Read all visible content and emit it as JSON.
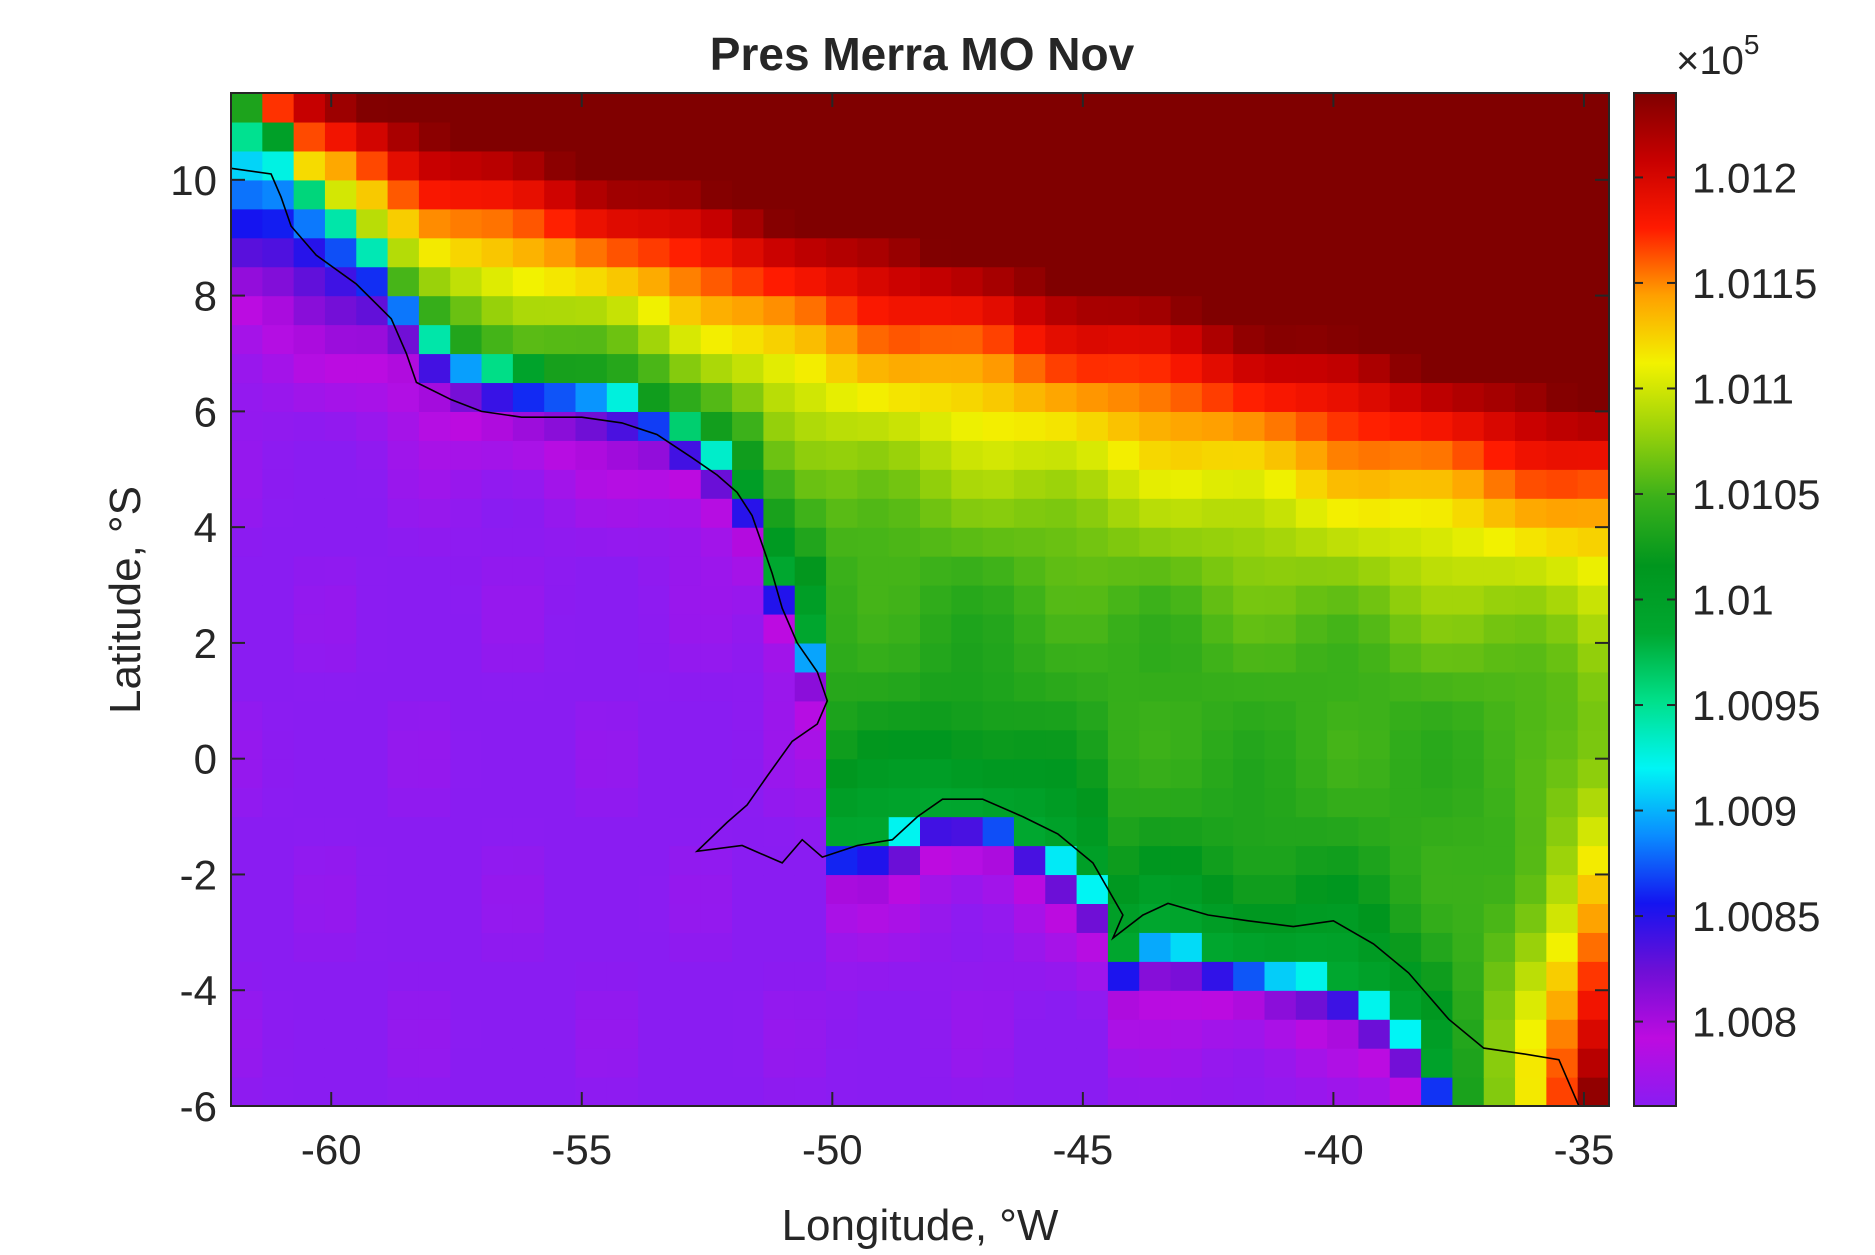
{
  "chart_data": {
    "type": "heatmap",
    "title": "Pres Merra MO Nov",
    "xlabel": "Longitude, °W",
    "ylabel": "Latitude, °S",
    "xlim": [
      -62,
      -34.5
    ],
    "ylim": [
      -6,
      11.5
    ],
    "x_ticks": [
      -60,
      -55,
      -50,
      -45,
      -40,
      -35
    ],
    "x_tick_labels": [
      "-60",
      "-55",
      "-50",
      "-45",
      "-40",
      "-35"
    ],
    "y_ticks": [
      -6,
      -4,
      -2,
      0,
      2,
      4,
      6,
      8,
      10
    ],
    "y_tick_labels": [
      "-6",
      "-4",
      "-2",
      "0",
      "2",
      "4",
      "6",
      "8",
      "10"
    ],
    "grid": false,
    "colorbar": {
      "multiplier_base": "×10",
      "multiplier_exponent": "5",
      "range": [
        1.0076,
        1.0124
      ],
      "ticks": [
        1.008,
        1.0085,
        1.009,
        1.0095,
        1.01,
        1.0105,
        1.011,
        1.0115,
        1.012
      ],
      "tick_labels": [
        "1.008",
        "1.0085",
        "1.009",
        "1.0095",
        "1.01",
        "1.0105",
        "1.011",
        "1.0115",
        "1.012"
      ],
      "colors": [
        "#8a1cf2",
        "#bd0be0",
        "#6e0fd6",
        "#1414f0",
        "#0a8cff",
        "#00f5f5",
        "#00e08a",
        "#00a830",
        "#00961e",
        "#3ab01a",
        "#9ad20a",
        "#f2f200",
        "#ffa000",
        "#ff1a00",
        "#c80000",
        "#800000"
      ]
    },
    "grid_spec": {
      "lon_min": -62,
      "lon_max": -34.5,
      "lat_min": -6,
      "lat_max": 11.5,
      "lon_step": 0.625,
      "lat_step": 0.5
    },
    "field_model": "Pressure field scaled by 1e5; low over the western ocean south-west of the coast (~1.0078-1.0085), steep rise across the coastline (~1.0095-1.01), trough of ~1.0104 parallel to the coast inland, rising toward the north-east corner to ~1.0124.",
    "coastline_points": [
      [
        -62,
        10.2
      ],
      [
        -61.2,
        10.1
      ],
      [
        -61,
        9.7
      ],
      [
        -60.8,
        9.2
      ],
      [
        -60.3,
        8.7
      ],
      [
        -59.5,
        8.2
      ],
      [
        -58.8,
        7.6
      ],
      [
        -58.5,
        7
      ],
      [
        -58.3,
        6.5
      ],
      [
        -57.6,
        6.2
      ],
      [
        -57,
        6
      ],
      [
        -56.2,
        5.9
      ],
      [
        -55.5,
        5.9
      ],
      [
        -55,
        5.9
      ],
      [
        -54.2,
        5.8
      ],
      [
        -53.5,
        5.6
      ],
      [
        -52.8,
        5.2
      ],
      [
        -52.3,
        4.9
      ],
      [
        -51.9,
        4.6
      ],
      [
        -51.6,
        4.2
      ],
      [
        -51.4,
        3.7
      ],
      [
        -51.2,
        3.2
      ],
      [
        -51,
        2.6
      ],
      [
        -50.7,
        2
      ],
      [
        -50.3,
        1.5
      ],
      [
        -50.1,
        1
      ],
      [
        -50.3,
        0.6
      ],
      [
        -50.8,
        0.3
      ],
      [
        -51.3,
        -0.3
      ],
      [
        -51.7,
        -0.8
      ],
      [
        -52.1,
        -1.1
      ],
      [
        -52.7,
        -1.6
      ],
      [
        -51.8,
        -1.5
      ],
      [
        -51,
        -1.8
      ],
      [
        -50.6,
        -1.4
      ],
      [
        -50.2,
        -1.7
      ],
      [
        -49.5,
        -1.5
      ],
      [
        -48.8,
        -1.4
      ],
      [
        -48.3,
        -1
      ],
      [
        -47.8,
        -0.7
      ],
      [
        -47,
        -0.7
      ],
      [
        -46.2,
        -1
      ],
      [
        -45.5,
        -1.3
      ],
      [
        -44.8,
        -1.8
      ],
      [
        -44.4,
        -2.4
      ],
      [
        -44.2,
        -2.7
      ],
      [
        -44.4,
        -3.1
      ],
      [
        -43.8,
        -2.7
      ],
      [
        -43.3,
        -2.5
      ],
      [
        -42.5,
        -2.7
      ],
      [
        -41.7,
        -2.8
      ],
      [
        -40.8,
        -2.9
      ],
      [
        -40,
        -2.8
      ],
      [
        -39.2,
        -3.2
      ],
      [
        -38.5,
        -3.7
      ],
      [
        -37.7,
        -4.5
      ],
      [
        -37,
        -5
      ],
      [
        -36.2,
        -5.1
      ],
      [
        -35.5,
        -5.2
      ],
      [
        -35.2,
        -5.8
      ],
      [
        -35.1,
        -6
      ]
    ],
    "coastline_note": "approximate Atlantic coastline of northern South America"
  }
}
